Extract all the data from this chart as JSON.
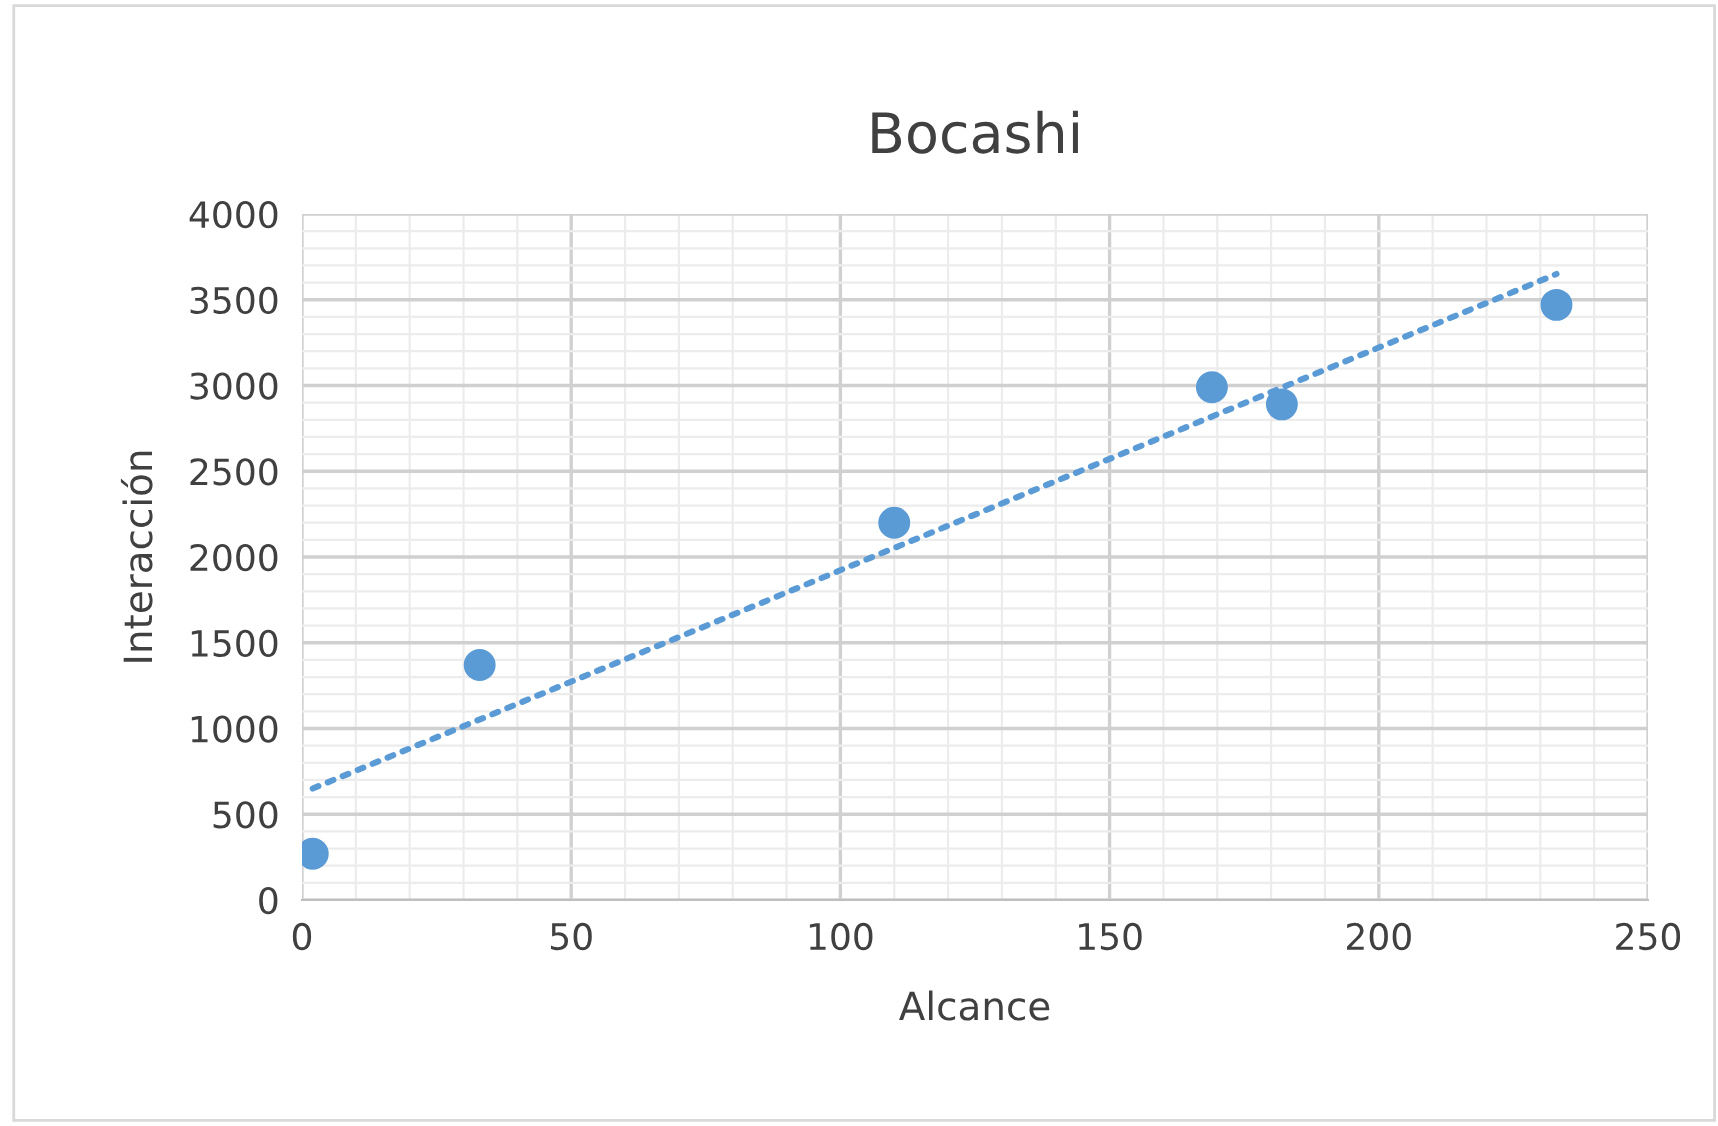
{
  "chart_data": {
    "type": "scatter",
    "title": "Bocashi",
    "xlabel": "Alcance",
    "ylabel": "Interacción",
    "xlim": [
      0,
      250
    ],
    "xticks": [
      0,
      50,
      100,
      150,
      200,
      250
    ],
    "ylim": [
      0,
      4000
    ],
    "yticks": [
      0,
      500,
      1000,
      1500,
      2000,
      2500,
      3000,
      3500,
      4000
    ],
    "grid": true,
    "series": [
      {
        "marker": "circle",
        "color": "#5b9bd5",
        "x": [
          2,
          33,
          110,
          169,
          182,
          233
        ],
        "values": [
          270,
          1370,
          2200,
          2990,
          2890,
          3470
        ]
      },
      {
        "type": "line",
        "marker": "none",
        "color": "#5b9bd5",
        "line_style": "dotted",
        "x": [
          2,
          233
        ],
        "values": [
          650,
          3650
        ]
      }
    ]
  }
}
